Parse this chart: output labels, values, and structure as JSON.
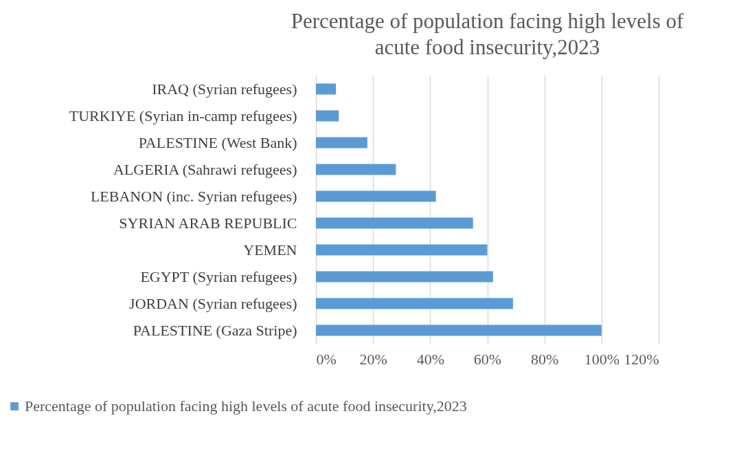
{
  "chart_data": {
    "type": "bar",
    "orientation": "horizontal",
    "title": "Percentage of population facing high levels of acute food insecurity,2023",
    "categories": [
      "IRAQ (Syrian refugees)",
      "TURKIYE (Syrian in-camp refugees)",
      "PALESTINE (West Bank)",
      "ALGERIA (Sahrawi refugees)",
      "LEBANON (inc. Syrian refugees)",
      "SYRIAN ARAB REPUBLIC",
      "YEMEN",
      "EGYPT (Syrian refugees)",
      "JORDAN (Syrian refugees)",
      "PALESTINE (Gaza Stripe)"
    ],
    "series": [
      {
        "name": "Percentage of population facing high levels of acute food insecurity,2023",
        "color": "#5b9bd5",
        "values": [
          7,
          8,
          18,
          28,
          42,
          55,
          60,
          62,
          69,
          100
        ]
      }
    ],
    "xlim": [
      0,
      120
    ],
    "xticks": [
      {
        "value": 0,
        "label": "0%"
      },
      {
        "value": 20,
        "label": "20%"
      },
      {
        "value": 40,
        "label": "40%"
      },
      {
        "value": 60,
        "label": "60%"
      },
      {
        "value": 80,
        "label": "80%"
      },
      {
        "value": 100,
        "label": "100%"
      },
      {
        "value": 120,
        "label": "120%"
      }
    ],
    "grid": "x",
    "legend": "bottom"
  }
}
